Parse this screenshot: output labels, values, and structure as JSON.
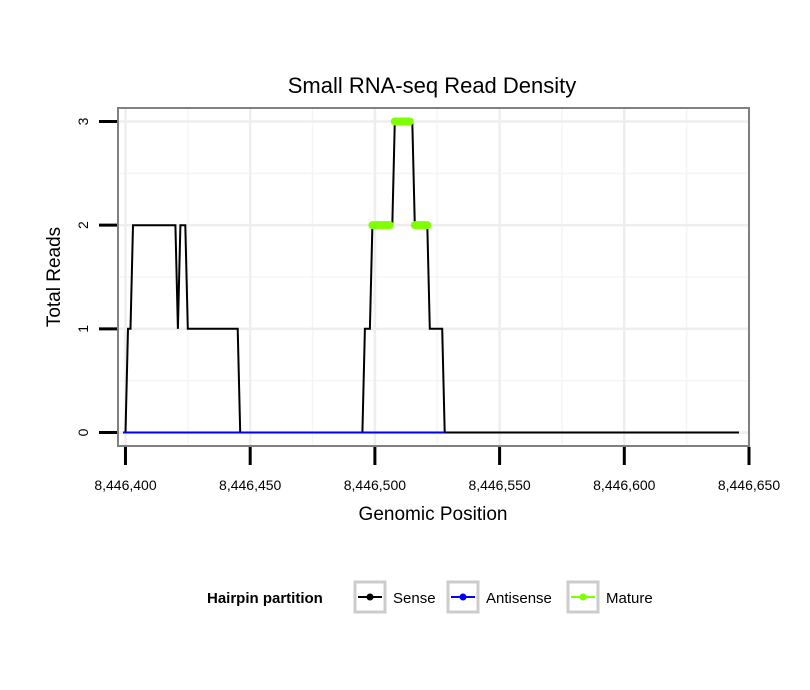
{
  "chart_data": {
    "type": "line",
    "title": "Small RNA-seq Read Density",
    "xlabel": "Genomic Position",
    "ylabel": "Total Reads",
    "xlim": [
      8446397,
      8446650
    ],
    "ylim": [
      -0.13,
      3.13
    ],
    "x_ticks": [
      8446400,
      8446450,
      8446500,
      8446550,
      8446600,
      8446650
    ],
    "x_tick_labels": [
      "8,446,400",
      "8,446,450",
      "8,446,500",
      "8,446,550",
      "8,446,600",
      "8,446,650"
    ],
    "y_ticks": [
      0,
      1,
      2,
      3
    ],
    "y_tick_labels": [
      "0",
      "1",
      "2",
      "3"
    ],
    "grid": true,
    "legend_position": "bottom",
    "legend": {
      "title": "Hairpin partition",
      "items": [
        {
          "label": "Sense",
          "color": "#000000"
        },
        {
          "label": "Antisense",
          "color": "#0000ff"
        },
        {
          "label": "Mature",
          "color": "#7fff00"
        }
      ]
    },
    "series": [
      {
        "name": "Sense",
        "color": "#000000",
        "x": [
          8446399,
          8446400,
          8446401,
          8446402,
          8446403,
          8446420,
          8446421,
          8446422,
          8446424,
          8446425,
          8446445,
          8446446,
          8446495,
          8446496,
          8446498,
          8446499,
          8446507,
          8446508,
          8446515,
          8446516,
          8446521,
          8446522,
          8446527,
          8446528,
          8446646
        ],
        "y": [
          0,
          0,
          1,
          1,
          2,
          2,
          1,
          2,
          2,
          1,
          1,
          0,
          0,
          1,
          1,
          2,
          2,
          3,
          3,
          2,
          2,
          1,
          1,
          0,
          0
        ]
      },
      {
        "name": "Antisense",
        "color": "#0000ff",
        "x": [
          8446399,
          8446528
        ],
        "y": [
          0,
          0
        ]
      },
      {
        "name": "Mature",
        "color": "#7fff00",
        "segments": [
          {
            "x": [
              8446499,
              8446506
            ],
            "y": 2
          },
          {
            "x": [
              8446508,
              8446514
            ],
            "y": 3
          },
          {
            "x": [
              8446516,
              8446521
            ],
            "y": 2
          }
        ]
      }
    ]
  }
}
